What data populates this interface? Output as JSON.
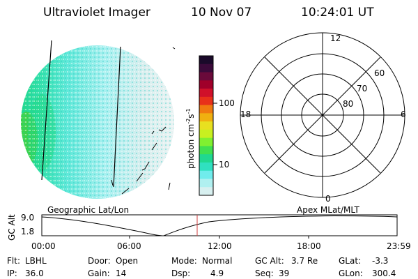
{
  "header": {
    "instrument": "Ultraviolet Imager",
    "date": "10 Nov 07",
    "time": "10:24:01 UT"
  },
  "colorbar": {
    "label": "photon cm",
    "label_sup1": "-2",
    "label_mid": "s",
    "label_sup2": "-1",
    "ticks": [
      "100",
      "10"
    ],
    "colors": [
      "#1a0a2a",
      "#3b0a3a",
      "#6a0a3a",
      "#a0002a",
      "#d0102a",
      "#e8301a",
      "#f07a10",
      "#f0b010",
      "#e8e020",
      "#c8f020",
      "#80f030",
      "#40e050",
      "#20d890",
      "#30e0c0",
      "#70ecec",
      "#b0f0f0",
      "#d8f0f0"
    ]
  },
  "polar": {
    "mlt_labels": {
      "top": "12",
      "right": "6",
      "bottom": "0",
      "left": "18"
    },
    "lat_labels": [
      "80",
      "70",
      "60"
    ]
  },
  "timeline": {
    "left_label": "Geographic Lat/Lon",
    "right_label": "Apex MLat/MLT",
    "axis_label": "GC Alt",
    "y_ticks": [
      "9.0",
      "1.8"
    ],
    "x_ticks": [
      "00:00",
      "06:00",
      "12:00",
      "18:00",
      "23:59"
    ]
  },
  "status": {
    "flt_label": "Flt:",
    "flt": "LBHL",
    "ip_label": "IP:",
    "ip": "36.0",
    "door_label": "Door:",
    "door": "Open",
    "gain_label": "Gain:",
    "gain": "14",
    "mode_label": "Mode:",
    "mode": "Normal",
    "dsp_label": "Dsp:",
    "dsp": "4.9",
    "gcalt_label": "GC Alt:",
    "gcalt": "3.7 Re",
    "seq_label": "Seq:",
    "seq": "39",
    "glat_label": "GLat:",
    "glat": "-3.3",
    "glon_label": "GLon:",
    "glon": "300.4"
  },
  "colors": {
    "marker": "#d04040",
    "ink": "#000000"
  }
}
